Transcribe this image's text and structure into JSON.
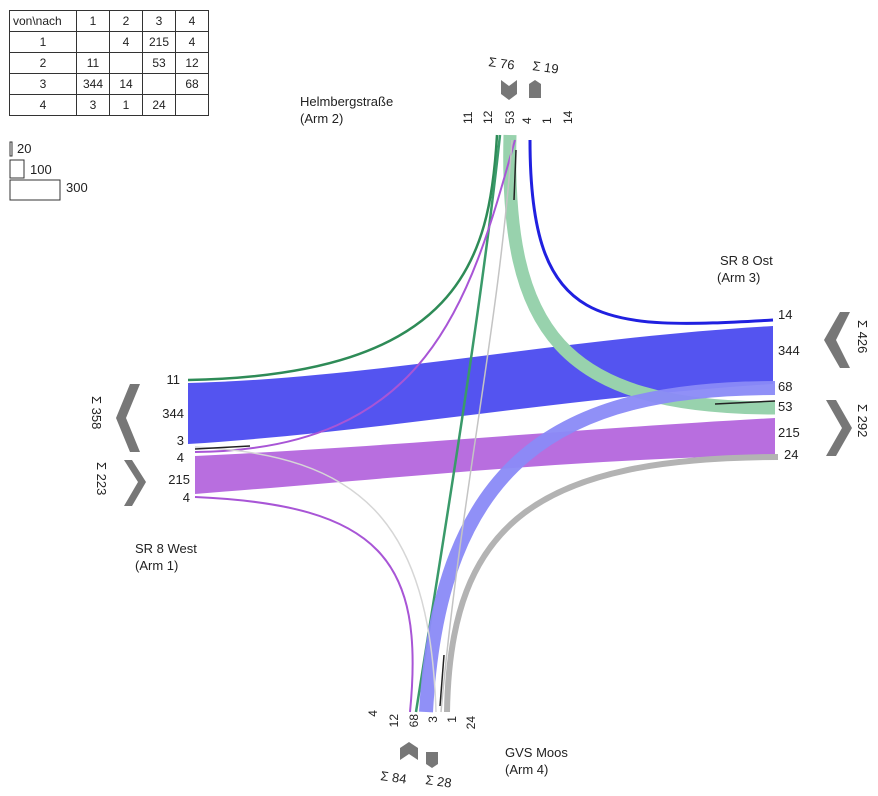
{
  "matrix": {
    "corner": "von\\nach",
    "col_headers": [
      "1",
      "2",
      "3",
      "4"
    ],
    "rows": [
      {
        "label": "1",
        "cells": [
          "",
          "4",
          "215",
          "4"
        ]
      },
      {
        "label": "2",
        "cells": [
          "11",
          "",
          "53",
          "12"
        ]
      },
      {
        "label": "3",
        "cells": [
          "344",
          "14",
          "",
          "68"
        ]
      },
      {
        "label": "4",
        "cells": [
          "3",
          "1",
          "24",
          ""
        ]
      }
    ]
  },
  "scale_legend": [
    "20",
    "100",
    "300"
  ],
  "arms": {
    "helmberg": {
      "name": "Helmbergstraße",
      "arm": "(Arm 2)",
      "sum_in": "Σ 76",
      "sum_out": "Σ 19",
      "flows": [
        "11",
        "12",
        "53",
        "4",
        "1",
        "14"
      ]
    },
    "ost": {
      "name": "SR 8 Ost",
      "arm": "(Arm 3)",
      "sum_in": "Σ 426",
      "sum_out": "Σ 292",
      "flows": [
        "14",
        "344",
        "68",
        "53",
        "215",
        "24"
      ]
    },
    "west": {
      "name": "SR 8 West",
      "arm": "(Arm 1)",
      "sum_in": "Σ 358",
      "sum_out": "Σ 223",
      "flows": [
        "11",
        "344",
        "3",
        "4",
        "215",
        "4"
      ]
    },
    "moos": {
      "name": "GVS Moos",
      "arm": "(Arm 4)",
      "sum_in": "Σ 84",
      "sum_out": "Σ 28",
      "flows": [
        "4",
        "12",
        "68",
        "3",
        "1",
        "24"
      ]
    }
  },
  "colors": {
    "from_west": "#a855d6",
    "from_helmberg": "#2e8b57",
    "from_ost": "#3a3af0",
    "from_moos": "#b3b3b3",
    "arrow": "#777777"
  }
}
